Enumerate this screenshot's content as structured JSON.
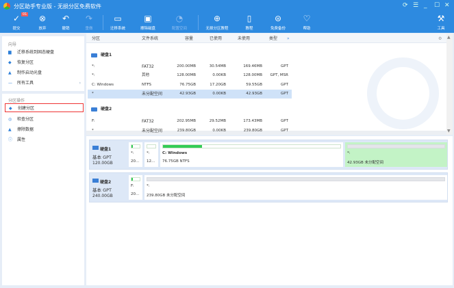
{
  "window": {
    "title": "分区助手专业版 - 无损分区免费软件",
    "controls": [
      "⟳",
      "☰",
      "_",
      "☐",
      "✕"
    ]
  },
  "toolbar": {
    "badge": "01",
    "items": [
      {
        "label": "提交",
        "icon": "✓"
      },
      {
        "label": "放弃",
        "icon": "⊗"
      },
      {
        "label": "撤销",
        "icon": "↶"
      },
      {
        "label": "重做",
        "icon": "↷"
      },
      {
        "label": "迁移系统",
        "icon": "▭"
      },
      {
        "label": "擦除磁盘",
        "icon": "▣"
      },
      {
        "label": "配置空间",
        "icon": "◔"
      },
      {
        "label": "无损分区教程",
        "icon": "⊕"
      },
      {
        "label": "教程",
        "icon": "▯"
      },
      {
        "label": "免费备份",
        "icon": "⊜"
      },
      {
        "label": "帮助",
        "icon": "♡"
      },
      {
        "label": "工具",
        "icon": "⚒"
      }
    ]
  },
  "sidebar": {
    "wizard_title": "向导",
    "wizard": [
      {
        "label": "迁移系统到固态硬盘"
      },
      {
        "label": "恢复分区"
      },
      {
        "label": "制作启动光盘"
      },
      {
        "label": "所有工具",
        "arrow": "›"
      }
    ],
    "ops_title": "分区操作",
    "ops": [
      {
        "label": "创建分区"
      },
      {
        "label": "检查分区"
      },
      {
        "label": "擦除数据"
      },
      {
        "label": "属性"
      }
    ]
  },
  "table": {
    "headers": [
      "分区",
      "文件系统",
      "容量",
      "已使用",
      "未使用",
      "类型"
    ],
    "more": "»",
    "disks": [
      {
        "name": "硬盘1",
        "rows": [
          [
            "*:",
            "FAT32",
            "200.00MB",
            "30.54MB",
            "169.46MB",
            "GPT"
          ],
          [
            "*:",
            "其他",
            "128.00MB",
            "0.00KB",
            "128.00MB",
            "GPT, MSR"
          ],
          [
            "C: Windows",
            "NTFS",
            "76.75GB",
            "17.20GB",
            "59.55GB",
            "GPT"
          ],
          [
            "*",
            "未分配空间",
            "42.93GB",
            "0.00KB",
            "42.93GB",
            "GPT"
          ]
        ]
      },
      {
        "name": "硬盘2",
        "rows": [
          [
            "F:",
            "FAT32",
            "202.95MB",
            "29.52MB",
            "173.43MB",
            "GPT"
          ],
          [
            "*",
            "未分配空间",
            "239.80GB",
            "0.00KB",
            "239.80GB",
            "GPT"
          ]
        ]
      }
    ]
  },
  "diskmap": [
    {
      "name": "硬盘1",
      "type": "基本 GPT",
      "size": "120.00GB",
      "parts": [
        {
          "label": "*:",
          "info": "20...",
          "used": 0.15
        },
        {
          "label": "*:",
          "info": "12...",
          "used": 0
        },
        {
          "label": "C: Windows",
          "info": "76.75GB NTFS",
          "used": 0.22
        },
        {
          "label": "*:",
          "info": "42.93GB 未分配空间",
          "used": 0
        }
      ]
    },
    {
      "name": "硬盘2",
      "type": "基本 GPT",
      "size": "240.00GB",
      "parts": [
        {
          "label": "F:",
          "info": "20...",
          "used": 0.15
        },
        {
          "label": "*:",
          "info": "239.80GB 未分配空间",
          "used": 0
        }
      ]
    }
  ]
}
